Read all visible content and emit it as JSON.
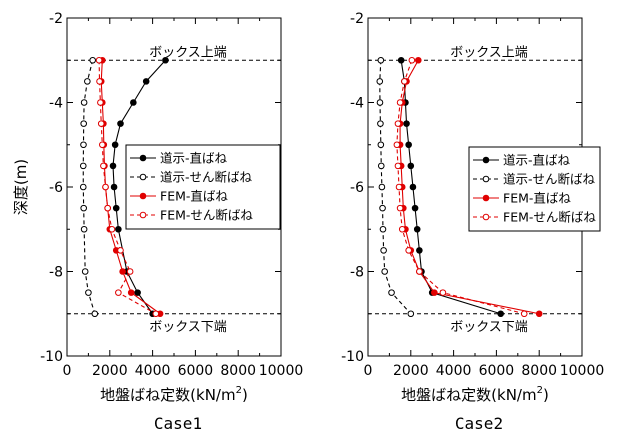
{
  "chart_data": [
    {
      "type": "line",
      "caption": "Case1",
      "xlabel": "地盤ばね定数(kN/m",
      "xlabel_sup": "2",
      "xlabel_close": ")",
      "ylabel": "深度(m)",
      "xlim": [
        0,
        10000
      ],
      "ylim": [
        -10,
        -2
      ],
      "xticks": [
        "0",
        "2000",
        "4000",
        "6000",
        "8000",
        "10000"
      ],
      "yticks": [
        "-2",
        "-4",
        "-6",
        "-8",
        "-10"
      ],
      "annotations": {
        "top": {
          "text": "ボックス上端",
          "depth": -3
        },
        "bottom": {
          "text": "ボックス下端",
          "depth": -9
        }
      },
      "legend_position": "middle-right",
      "series": [
        {
          "name": "道示-直ばね",
          "color": "#000000",
          "dash": "solid",
          "marker": "filled",
          "x": [
            4600,
            3700,
            3100,
            2500,
            2250,
            2150,
            2200,
            2300,
            2400,
            2800,
            3300,
            4000
          ],
          "y": [
            -3,
            -3.5,
            -4,
            -4.5,
            -5,
            -5.5,
            -6,
            -6.5,
            -7,
            -8,
            -8.5,
            -9
          ]
        },
        {
          "name": "道示-せん断ばね",
          "color": "#000000",
          "dash": "dashed",
          "marker": "open",
          "x": [
            1200,
            950,
            800,
            780,
            770,
            760,
            760,
            780,
            800,
            850,
            1000,
            1300
          ],
          "y": [
            -3,
            -3.5,
            -4,
            -4.5,
            -5,
            -5.5,
            -6,
            -6.5,
            -7,
            -8,
            -8.5,
            -9
          ]
        },
        {
          "name": "FEM-直ばね",
          "color": "#e00000",
          "dash": "solid",
          "marker": "filled",
          "x": [
            1650,
            1600,
            1650,
            1700,
            1720,
            1750,
            1800,
            1900,
            2000,
            2300,
            2600,
            3000,
            4350
          ],
          "y": [
            -3,
            -3.5,
            -4,
            -4.5,
            -5,
            -5.5,
            -6,
            -6.5,
            -7,
            -7.5,
            -8,
            -8.5,
            -9
          ]
        },
        {
          "name": "FEM-せん断ばね",
          "color": "#e00000",
          "dash": "dashed",
          "marker": "open",
          "x": [
            1500,
            1520,
            1560,
            1600,
            1650,
            1700,
            1800,
            1900,
            2100,
            2500,
            2950,
            2400,
            4150
          ],
          "y": [
            -3,
            -3.5,
            -4,
            -4.5,
            -5,
            -5.5,
            -6,
            -6.5,
            -7,
            -7.5,
            -8,
            -8.5,
            -9
          ]
        }
      ]
    },
    {
      "type": "line",
      "caption": "Case2",
      "xlabel": "地盤ばね定数(kN/m",
      "xlabel_sup": "2",
      "xlabel_close": ")",
      "ylabel": "",
      "xlim": [
        0,
        10000
      ],
      "ylim": [
        -10,
        -2
      ],
      "xticks": [
        "0",
        "2000",
        "4000",
        "6000",
        "8000",
        "10000"
      ],
      "yticks": [
        "-2",
        "-4",
        "-6",
        "-8",
        "-10"
      ],
      "annotations": {
        "top": {
          "text": "ボックス上端",
          "depth": -3
        },
        "bottom": {
          "text": "ボックス下端",
          "depth": -9
        }
      },
      "legend_position": "middle-right",
      "series": [
        {
          "name": "道示-直ばね",
          "color": "#000000",
          "dash": "solid",
          "marker": "filled",
          "x": [
            1550,
            1700,
            1750,
            1800,
            1900,
            2000,
            2100,
            2200,
            2300,
            2400,
            2500,
            3000,
            6200
          ],
          "y": [
            -3,
            -3.5,
            -4,
            -4.5,
            -5,
            -5.5,
            -6,
            -6.5,
            -7,
            -7.5,
            -8,
            -8.5,
            -9
          ]
        },
        {
          "name": "道示-せん断ばね",
          "color": "#000000",
          "dash": "dashed",
          "marker": "open",
          "x": [
            600,
            550,
            560,
            580,
            600,
            620,
            650,
            680,
            700,
            730,
            780,
            1100,
            2000
          ],
          "y": [
            -3,
            -3.5,
            -4,
            -4.5,
            -5,
            -5.5,
            -6,
            -6.5,
            -7,
            -7.5,
            -8,
            -8.5,
            -9
          ]
        },
        {
          "name": "FEM-直ばね",
          "color": "#e00000",
          "dash": "solid",
          "marker": "filled",
          "x": [
            2350,
            1800,
            1600,
            1500,
            1500,
            1550,
            1600,
            1650,
            1750,
            2000,
            2400,
            3100,
            8000
          ],
          "y": [
            -3,
            -3.5,
            -4,
            -4.5,
            -5,
            -5.5,
            -6,
            -6.5,
            -7,
            -7.5,
            -8,
            -8.5,
            -9
          ]
        },
        {
          "name": "FEM-せん断ばね",
          "color": "#e00000",
          "dash": "dashed",
          "marker": "open",
          "x": [
            2050,
            1700,
            1500,
            1400,
            1350,
            1400,
            1450,
            1500,
            1600,
            1900,
            2400,
            3500,
            7300
          ],
          "y": [
            -3,
            -3.5,
            -4,
            -4.5,
            -5,
            -5.5,
            -6,
            -6.5,
            -7,
            -7.5,
            -8,
            -8.5,
            -9
          ]
        }
      ]
    }
  ]
}
